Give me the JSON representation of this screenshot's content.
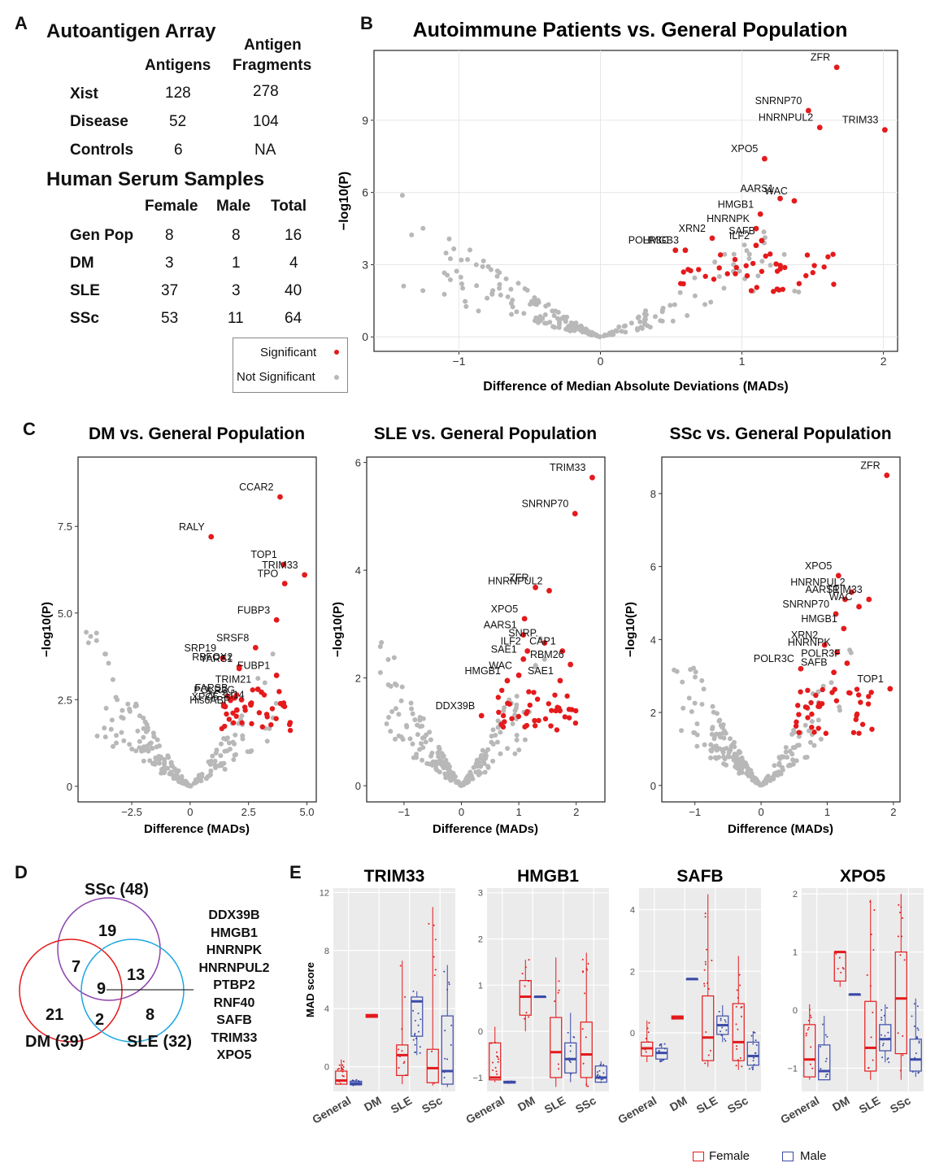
{
  "panel_letters": [
    "A",
    "B",
    "C",
    "D",
    "E"
  ],
  "table_A": {
    "title": "Autoantigen Array",
    "col_antigens": "Antigens",
    "col_fragments_line1": "Antigen",
    "col_fragments_line2": "Fragments",
    "rows": [
      {
        "label": "Xist",
        "antigens": "128",
        "fragments": "278"
      },
      {
        "label": "Disease",
        "antigens": "52",
        "fragments": "104"
      },
      {
        "label": "Controls",
        "antigens": "6",
        "fragments": "NA"
      }
    ],
    "serum_title": "Human Serum Samples",
    "serum_cols": [
      "Female",
      "Male",
      "Total"
    ],
    "serum_rows": [
      {
        "label": "Gen Pop",
        "female": "8",
        "male": "8",
        "total": "16"
      },
      {
        "label": "DM",
        "female": "3",
        "male": "1",
        "total": "4"
      },
      {
        "label": "SLE",
        "female": "37",
        "male": "3",
        "total": "40"
      },
      {
        "label": "SSc",
        "female": "53",
        "male": "11",
        "total": "64"
      }
    ]
  },
  "legend_sig": {
    "significant": "Significant",
    "not_significant": "Not Significant"
  },
  "colors": {
    "significant": "#e41a1c",
    "not_significant": "#b8b8b8",
    "female": "#e41a1c",
    "male": "#3b4ba8",
    "venn_ssc": "#8e44ad",
    "venn_dm": "#e41a1c",
    "venn_sle": "#1ea7e1",
    "panel_bg": "#ebebeb"
  },
  "venn": {
    "ssc_label": "SSc (48)",
    "dm_label": "DM (39)",
    "sle_label": "SLE (32)",
    "ssc_only": "19",
    "dm_only": "21",
    "sle_only": "8",
    "ssc_dm": "7",
    "ssc_sle": "13",
    "dm_sle": "2",
    "all": "9",
    "shared_list": [
      "DDX39B",
      "HMGB1",
      "HNRNPK",
      "HNRNPUL2",
      "PTBP2",
      "RNF40",
      "SAFB",
      "TRIM33",
      "XPO5"
    ]
  },
  "legend_sex": {
    "female": "Female",
    "male": "Male"
  },
  "chart_data": [
    {
      "type": "scatter",
      "id": "B",
      "title": "Autoimmune Patients vs. General Population",
      "xlabel": "Difference of Median Absolute Deviations (MADs)",
      "ylabel": "−log10(P)",
      "xlim": [
        -1.6,
        2.1
      ],
      "ylim": [
        -0.6,
        11.9
      ],
      "xticks": [
        -1,
        0,
        1,
        2
      ],
      "yticks": [
        0,
        3,
        6,
        9
      ],
      "grid": true,
      "labeled_points": [
        {
          "name": "ZFR",
          "x": 1.67,
          "y": 11.2
        },
        {
          "name": "TRIM33",
          "x": 2.01,
          "y": 8.6
        },
        {
          "name": "SNRNP70",
          "x": 1.47,
          "y": 9.4
        },
        {
          "name": "HNRNPUL2",
          "x": 1.55,
          "y": 8.7
        },
        {
          "name": "XPO5",
          "x": 1.16,
          "y": 7.4
        },
        {
          "name": "AARS1",
          "x": 1.27,
          "y": 5.75
        },
        {
          "name": "WAC",
          "x": 1.37,
          "y": 5.65
        },
        {
          "name": "HNRNPK",
          "x": 1.1,
          "y": 4.5
        },
        {
          "name": "HMGB1",
          "x": 1.13,
          "y": 5.1
        },
        {
          "name": "XRN2",
          "x": 0.79,
          "y": 4.1
        },
        {
          "name": "ILF2",
          "x": 1.1,
          "y": 3.8
        },
        {
          "name": "SAFB",
          "x": 1.14,
          "y": 4.0
        },
        {
          "name": "POLR3C",
          "x": 0.53,
          "y": 3.6
        },
        {
          "name": "HMGB3",
          "x": 0.6,
          "y": 3.6
        }
      ]
    },
    {
      "type": "scatter",
      "id": "C_DM",
      "title": "DM vs. General Population",
      "xlabel": "Difference (MADs)",
      "ylabel": "−log10(P)",
      "xlim": [
        -4.8,
        5.4
      ],
      "ylim": [
        -0.45,
        9.5
      ],
      "xticks": [
        -2.5,
        0.0,
        2.5,
        5.0
      ],
      "yticks": [
        0.0,
        2.5,
        5.0,
        7.5
      ],
      "labeled_points": [
        {
          "name": "CCAR2",
          "x": 3.85,
          "y": 8.35
        },
        {
          "name": "RALY",
          "x": 0.9,
          "y": 7.2
        },
        {
          "name": "TOP1",
          "x": 4.0,
          "y": 6.4
        },
        {
          "name": "TRIM33",
          "x": 4.9,
          "y": 6.1
        },
        {
          "name": "TPO",
          "x": 4.05,
          "y": 5.85
        },
        {
          "name": "FUBP3",
          "x": 3.7,
          "y": 4.8
        },
        {
          "name": "SRSF8",
          "x": 2.8,
          "y": 4.0
        },
        {
          "name": "SRP19",
          "x": 1.4,
          "y": 3.7
        },
        {
          "name": "RBFOX2",
          "x": 2.1,
          "y": 3.45
        },
        {
          "name": "FUBP1",
          "x": 3.7,
          "y": 3.2
        },
        {
          "name": "YARS1",
          "x": 2.1,
          "y": 3.4
        },
        {
          "name": "TRIM21",
          "x": 2.9,
          "y": 2.8
        },
        {
          "name": "FARSB",
          "x": 1.9,
          "y": 2.55
        },
        {
          "name": "POLR3G",
          "x": 2.2,
          "y": 2.5
        },
        {
          "name": "XPO5",
          "x": 1.5,
          "y": 2.3
        },
        {
          "name": "ZC3H14",
          "x": 2.6,
          "y": 2.35
        },
        {
          "name": "His6ABP",
          "x": 2.0,
          "y": 2.2
        }
      ]
    },
    {
      "type": "scatter",
      "id": "C_SLE",
      "title": "SLE vs. General Population",
      "xlabel": "Difference (MADs)",
      "ylabel": "−log10(P)",
      "xlim": [
        -1.65,
        2.5
      ],
      "ylim": [
        -0.3,
        6.1
      ],
      "xticks": [
        -1,
        0,
        1,
        2
      ],
      "yticks": [
        0,
        2,
        4,
        6
      ],
      "labeled_points": [
        {
          "name": "TRIM33",
          "x": 2.28,
          "y": 5.72
        },
        {
          "name": "SNRNP70",
          "x": 1.98,
          "y": 5.05
        },
        {
          "name": "ZFR",
          "x": 1.29,
          "y": 3.68
        },
        {
          "name": "HNRNPUL2",
          "x": 1.53,
          "y": 3.62
        },
        {
          "name": "XPO5",
          "x": 1.1,
          "y": 3.1
        },
        {
          "name": "AARS1",
          "x": 1.08,
          "y": 2.8
        },
        {
          "name": "SNRP.",
          "x": 1.45,
          "y": 2.65
        },
        {
          "name": "ILF2",
          "x": 1.15,
          "y": 2.5
        },
        {
          "name": "CAP1",
          "x": 1.76,
          "y": 2.5
        },
        {
          "name": "SAE1",
          "x": 1.08,
          "y": 2.35
        },
        {
          "name": "RBM26",
          "x": 1.9,
          "y": 2.25
        },
        {
          "name": "HMGB1",
          "x": 0.8,
          "y": 1.95
        },
        {
          "name": "WAC",
          "x": 1.0,
          "y": 2.05
        },
        {
          "name": "SAE1",
          "x": 1.72,
          "y": 1.95
        },
        {
          "name": "DDX39B",
          "x": 0.35,
          "y": 1.3
        }
      ]
    },
    {
      "type": "scatter",
      "id": "C_SSc",
      "title": "SSc vs. General Population",
      "xlabel": "Difference (MADs)",
      "ylabel": "−log10(P)",
      "xlim": [
        -1.5,
        2.1
      ],
      "ylim": [
        -0.45,
        9.0
      ],
      "xticks": [
        -1,
        0,
        1,
        2
      ],
      "yticks": [
        0,
        2,
        4,
        6,
        8
      ],
      "labeled_points": [
        {
          "name": "ZFR",
          "x": 1.9,
          "y": 8.5
        },
        {
          "name": "XPO5",
          "x": 1.17,
          "y": 5.75
        },
        {
          "name": "HNRNPUL2",
          "x": 1.37,
          "y": 5.3
        },
        {
          "name": "TRIM33",
          "x": 1.63,
          "y": 5.1
        },
        {
          "name": "AARS1",
          "x": 1.27,
          "y": 5.1
        },
        {
          "name": "WAC",
          "x": 1.48,
          "y": 4.9
        },
        {
          "name": "SNRNP70",
          "x": 1.13,
          "y": 4.7
        },
        {
          "name": "HMGB1",
          "x": 1.25,
          "y": 4.3
        },
        {
          "name": "XRN2",
          "x": 0.96,
          "y": 3.85
        },
        {
          "name": "HNRNPK",
          "x": 1.15,
          "y": 3.65
        },
        {
          "name": "POLR3C",
          "x": 0.6,
          "y": 3.2
        },
        {
          "name": "POLR3F",
          "x": 1.3,
          "y": 3.35
        },
        {
          "name": "SAFB",
          "x": 1.1,
          "y": 3.1
        },
        {
          "name": "TOP1",
          "x": 1.95,
          "y": 2.65
        }
      ]
    },
    {
      "type": "box",
      "id": "E_TRIM33",
      "title": "TRIM33",
      "ylabel": "MAD score",
      "categories": [
        "General",
        "DM",
        "SLE",
        "SSc"
      ],
      "ylim": [
        -1.7,
        12.3
      ],
      "yticks": [
        0,
        4,
        8,
        12
      ],
      "series": [
        {
          "name": "Female",
          "boxes": [
            {
              "cat": "General",
              "q1": -1.2,
              "median": -0.95,
              "q3": -0.3,
              "min": -1.2,
              "max": 0.5
            },
            {
              "cat": "DM",
              "q1": 3.4,
              "median": 3.5,
              "q3": 3.6,
              "min": 3.4,
              "max": 3.6
            },
            {
              "cat": "SLE",
              "q1": -0.6,
              "median": 0.8,
              "q3": 1.5,
              "min": -1.2,
              "max": 7.3
            },
            {
              "cat": "SSc",
              "q1": -1.1,
              "median": -0.1,
              "q3": 1.2,
              "min": -1.3,
              "max": 11.0
            }
          ]
        },
        {
          "name": "Male",
          "boxes": [
            {
              "cat": "General",
              "q1": -1.25,
              "median": -1.15,
              "q3": -1.0,
              "min": -1.3,
              "max": -0.9
            },
            {
              "cat": "SLE",
              "q1": 2.1,
              "median": 4.5,
              "q3": 4.8,
              "min": 0.8,
              "max": 5.2
            },
            {
              "cat": "SSc",
              "q1": -1.2,
              "median": -0.3,
              "q3": 3.5,
              "min": -1.4,
              "max": 7.0
            }
          ]
        }
      ]
    },
    {
      "type": "box",
      "id": "E_HMGB1",
      "title": "HMGB1",
      "ylabel": "",
      "categories": [
        "General",
        "DM",
        "SLE",
        "SSc"
      ],
      "ylim": [
        -1.3,
        3.1
      ],
      "yticks": [
        -1,
        0,
        1,
        2,
        3
      ],
      "series": [
        {
          "name": "Female",
          "boxes": [
            {
              "cat": "General",
              "q1": -1.05,
              "median": -1.0,
              "q3": -0.25,
              "min": -1.1,
              "max": 0.1
            },
            {
              "cat": "DM",
              "q1": 0.35,
              "median": 0.75,
              "q3": 1.1,
              "min": 0.0,
              "max": 1.55
            },
            {
              "cat": "SLE",
              "q1": -1.0,
              "median": -0.45,
              "q3": 0.3,
              "min": -1.2,
              "max": 1.6
            },
            {
              "cat": "SSc",
              "q1": -1.0,
              "median": -0.5,
              "q3": 0.2,
              "min": -1.2,
              "max": 1.7
            }
          ]
        },
        {
          "name": "Male",
          "boxes": [
            {
              "cat": "General",
              "q1": -1.12,
              "median": -1.1,
              "q3": -1.08,
              "min": -1.12,
              "max": -1.08
            },
            {
              "cat": "DM",
              "q1": 0.75,
              "median": 0.75,
              "q3": 0.75,
              "min": 0.75,
              "max": 0.75
            },
            {
              "cat": "SLE",
              "q1": -0.9,
              "median": -0.6,
              "q3": -0.25,
              "min": -1.1,
              "max": 0.4
            },
            {
              "cat": "SSc",
              "q1": -1.1,
              "median": -1.0,
              "q3": -0.75,
              "min": -1.1,
              "max": -0.65
            }
          ]
        }
      ]
    },
    {
      "type": "box",
      "id": "E_SAFB",
      "title": "SAFB",
      "ylabel": "",
      "categories": [
        "General",
        "DM",
        "SLE",
        "SSc"
      ],
      "ylim": [
        -1.9,
        4.7
      ],
      "yticks": [
        0,
        2,
        4
      ],
      "series": [
        {
          "name": "Female",
          "boxes": [
            {
              "cat": "General",
              "q1": -0.75,
              "median": -0.5,
              "q3": -0.3,
              "min": -0.95,
              "max": 0.4
            },
            {
              "cat": "DM",
              "q1": 0.45,
              "median": 0.5,
              "q3": 0.55,
              "min": 0.45,
              "max": 0.55
            },
            {
              "cat": "SLE",
              "q1": -0.9,
              "median": -0.15,
              "q3": 1.2,
              "min": -1.1,
              "max": 4.5
            },
            {
              "cat": "SSc",
              "q1": -0.9,
              "median": -0.3,
              "q3": 0.95,
              "min": -1.2,
              "max": 2.5
            }
          ]
        },
        {
          "name": "Male",
          "boxes": [
            {
              "cat": "General",
              "q1": -0.85,
              "median": -0.65,
              "q3": -0.5,
              "min": -0.95,
              "max": -0.35
            },
            {
              "cat": "DM",
              "q1": 1.75,
              "median": 1.75,
              "q3": 1.75,
              "min": 1.75,
              "max": 1.75
            },
            {
              "cat": "SLE",
              "q1": -0.05,
              "median": 0.25,
              "q3": 0.55,
              "min": -0.3,
              "max": 0.9
            },
            {
              "cat": "SSc",
              "q1": -1.05,
              "median": -0.75,
              "q3": -0.3,
              "min": -1.2,
              "max": 0.05
            }
          ]
        }
      ]
    },
    {
      "type": "box",
      "id": "E_XPO5",
      "title": "XPO5",
      "ylabel": "",
      "categories": [
        "General",
        "DM",
        "SLE",
        "SSc"
      ],
      "ylim": [
        -1.4,
        2.1
      ],
      "yticks": [
        -1,
        0,
        1,
        2
      ],
      "series": [
        {
          "name": "Female",
          "boxes": [
            {
              "cat": "General",
              "q1": -1.15,
              "median": -0.85,
              "q3": -0.25,
              "min": -1.2,
              "max": 0.1
            },
            {
              "cat": "DM",
              "q1": 0.5,
              "median": 1.0,
              "q3": 1.0,
              "min": 0.4,
              "max": 1.0
            },
            {
              "cat": "SLE",
              "q1": -1.05,
              "median": -0.65,
              "q3": 0.15,
              "min": -1.2,
              "max": 1.9
            },
            {
              "cat": "SSc",
              "q1": -0.75,
              "median": 0.2,
              "q3": 1.0,
              "min": -1.2,
              "max": 2.0
            }
          ]
        },
        {
          "name": "Male",
          "boxes": [
            {
              "cat": "General",
              "q1": -1.2,
              "median": -1.05,
              "q3": -0.6,
              "min": -1.2,
              "max": -0.1
            },
            {
              "cat": "DM",
              "q1": 0.27,
              "median": 0.27,
              "q3": 0.27,
              "min": 0.27,
              "max": 0.27
            },
            {
              "cat": "SLE",
              "q1": -0.7,
              "median": -0.5,
              "q3": -0.25,
              "min": -0.9,
              "max": 0.1
            },
            {
              "cat": "SSc",
              "q1": -1.05,
              "median": -0.85,
              "q3": -0.5,
              "min": -1.15,
              "max": 0.2
            }
          ]
        }
      ]
    }
  ]
}
